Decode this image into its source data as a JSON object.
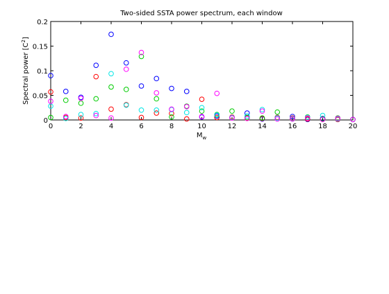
{
  "chart_data": {
    "type": "scatter",
    "title": "Two-sided SSTA power spectrum, each window",
    "xlabel": "M",
    "xlabel_subscript": "w",
    "ylabel": "Spectral power [C",
    "ylabel_superscript": "2",
    "ylabel_suffix": "]",
    "xlim": [
      0,
      20
    ],
    "ylim": [
      0,
      0.2
    ],
    "xticks": [
      "0",
      "2",
      "4",
      "6",
      "8",
      "10",
      "12",
      "14",
      "16",
      "18",
      "20"
    ],
    "yticks": [
      "0",
      "0.05",
      "0.1",
      "0.15",
      "0.2"
    ],
    "grid": false,
    "marker": "open-circle",
    "series": [
      {
        "color": "#0000ff",
        "x": [
          0,
          1,
          2,
          3,
          4,
          5,
          6,
          7,
          8,
          9,
          10,
          11,
          12,
          13,
          14,
          15,
          16,
          17,
          18,
          19,
          20
        ],
        "y": [
          0.09,
          0.058,
          0.046,
          0.111,
          0.174,
          0.116,
          0.069,
          0.084,
          0.064,
          0.058,
          0.006,
          0.008,
          0.005,
          0.014,
          0.002,
          0.005,
          0.007,
          0.001,
          0.003,
          0.001,
          0.001
        ]
      },
      {
        "color": "#ff0000",
        "x": [
          0,
          1,
          2,
          3,
          4,
          5,
          6,
          7,
          8,
          9,
          10,
          11,
          12,
          13,
          14,
          15,
          16,
          17,
          18,
          19,
          20
        ],
        "y": [
          0.057,
          0.005,
          0.004,
          0.088,
          0.022,
          0.031,
          0.005,
          0.014,
          0.013,
          0.002,
          0.042,
          0.005,
          0.006,
          0.004,
          0.003,
          0.005,
          0.004,
          0.002,
          0.002,
          0.001,
          0.001
        ]
      },
      {
        "color": "#00cc00",
        "x": [
          0,
          1,
          2,
          3,
          4,
          5,
          6,
          7,
          8,
          9,
          10,
          11,
          12,
          13,
          14,
          15,
          16,
          17,
          18,
          19,
          20
        ],
        "y": [
          0.005,
          0.04,
          0.034,
          0.043,
          0.067,
          0.062,
          0.129,
          0.043,
          0.006,
          0.028,
          0.018,
          0.011,
          0.018,
          0.005,
          0.004,
          0.016,
          0.002,
          0.006,
          0.002,
          0.004,
          0.001
        ]
      },
      {
        "color": "#00e5e5",
        "x": [
          0,
          1,
          2,
          3,
          4,
          5,
          6,
          7,
          8,
          9,
          10,
          11,
          12,
          13,
          14,
          15,
          16,
          17,
          18,
          19,
          20
        ],
        "y": [
          0.028,
          0.003,
          0.011,
          0.013,
          0.094,
          0.03,
          0.02,
          0.02,
          0.021,
          0.015,
          0.025,
          0.01,
          0.005,
          0.008,
          0.021,
          0.004,
          0.003,
          0.005,
          0.009,
          0.002,
          0.001
        ]
      },
      {
        "color": "#ff00ff",
        "x": [
          0,
          1,
          2,
          3,
          4,
          5,
          6,
          7,
          8,
          9,
          10,
          11,
          12,
          13,
          14,
          15,
          16,
          17,
          18,
          19,
          20
        ],
        "y": [
          0.038,
          0.007,
          0.044,
          0.009,
          0.004,
          0.103,
          0.137,
          0.055,
          0.022,
          0.027,
          0.007,
          0.054,
          0.004,
          0.003,
          0.018,
          0.002,
          0.002,
          0.004,
          0.001,
          0.003,
          0.001
        ]
      }
    ]
  }
}
